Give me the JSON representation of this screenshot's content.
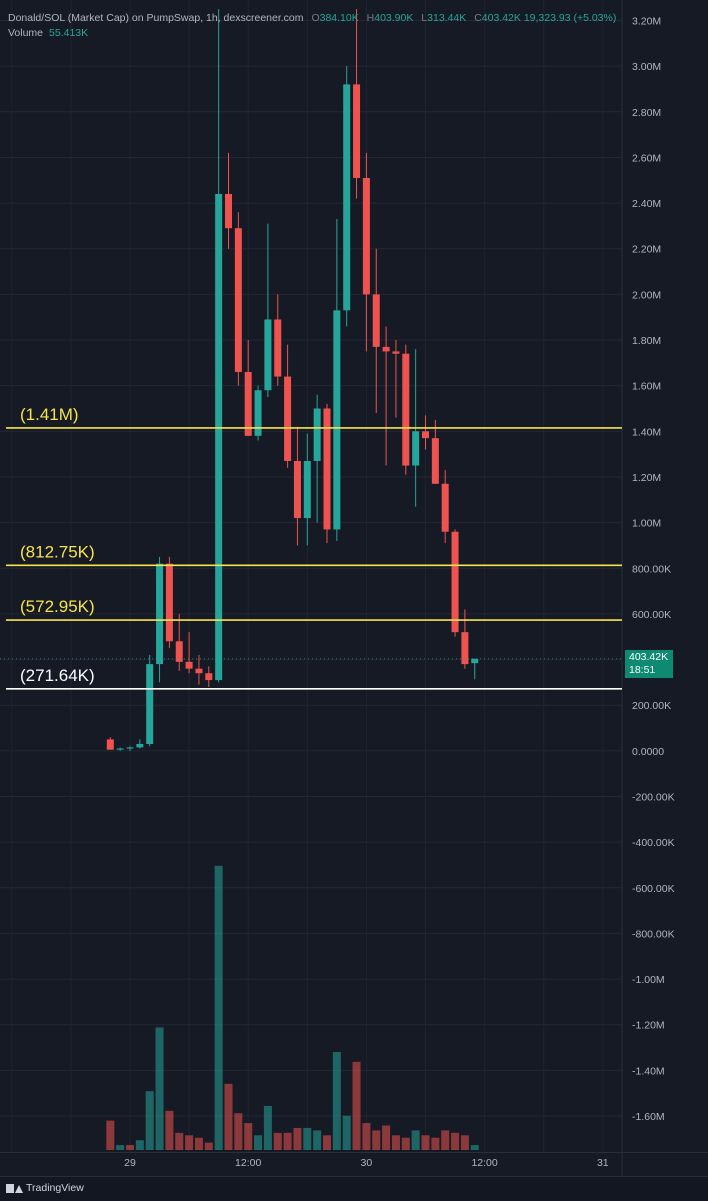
{
  "legend": {
    "symbol": "Donald/SOL (Market Cap) on PumpSwap, 1h, dexscreener.com",
    "o_label": "O",
    "o_value": "384.10K",
    "h_label": "H",
    "h_value": "403.90K",
    "l_label": "L",
    "l_value": "313.44K",
    "c_label": "C",
    "c_value": "403.42K",
    "change": "19,323.93 (+5.03%)",
    "volume_label": "Volume",
    "volume_value": "55.413K"
  },
  "price_tag": {
    "price": "403.42K",
    "countdown": "18:51"
  },
  "footer": {
    "brand": "TradingView"
  },
  "colors": {
    "up": "#26a69a",
    "down": "#ef5350",
    "level_yellow": "#f7e34b",
    "level_white": "#ffffff",
    "background": "#161a25"
  },
  "chart_data": {
    "type": "candlestick",
    "title": "Donald/SOL (Market Cap) on PumpSwap, 1h, dexscreener.com",
    "interval": "1h",
    "x_ticks": [
      {
        "label": "29",
        "hour": 0
      },
      {
        "label": "12:00",
        "hour": 12
      },
      {
        "label": "30",
        "hour": 24
      },
      {
        "label": "12:00",
        "hour": 36
      },
      {
        "label": "31",
        "hour": 48
      }
    ],
    "y_ticks": [
      "3.20M",
      "3.00M",
      "2.80M",
      "2.60M",
      "2.40M",
      "2.20M",
      "2.00M",
      "1.80M",
      "1.60M",
      "1.40M",
      "1.20M",
      "1.00M",
      "800.00K",
      "600.00K",
      "400.00K",
      "200.00K",
      "0.0000",
      "-200.00K",
      "-400.00K",
      "-600.00K",
      "-800.00K",
      "-1.00M",
      "-1.20M",
      "-1.40M",
      "-1.60M"
    ],
    "y_range": [
      -1750000,
      3250000
    ],
    "candles": [
      {
        "hour": -2,
        "o": 50000,
        "h": 60000,
        "l": 5000,
        "c": 5000
      },
      {
        "hour": -1,
        "o": 5000,
        "h": 15000,
        "l": 0,
        "c": 10000
      },
      {
        "hour": 0,
        "o": 10000,
        "h": 20000,
        "l": 0,
        "c": 15000
      },
      {
        "hour": 1,
        "o": 15000,
        "h": 50000,
        "l": 10000,
        "c": 30000
      },
      {
        "hour": 2,
        "o": 30000,
        "h": 420000,
        "l": 20000,
        "c": 380000
      },
      {
        "hour": 3,
        "o": 380000,
        "h": 850000,
        "l": 300000,
        "c": 820000
      },
      {
        "hour": 4,
        "o": 820000,
        "h": 850000,
        "l": 450000,
        "c": 480000
      },
      {
        "hour": 5,
        "o": 480000,
        "h": 600000,
        "l": 350000,
        "c": 390000
      },
      {
        "hour": 6,
        "o": 390000,
        "h": 520000,
        "l": 340000,
        "c": 360000
      },
      {
        "hour": 7,
        "o": 360000,
        "h": 420000,
        "l": 290000,
        "c": 340000
      },
      {
        "hour": 8,
        "o": 340000,
        "h": 370000,
        "l": 280000,
        "c": 310000
      },
      {
        "hour": 9,
        "o": 310000,
        "h": 3250000,
        "l": 300000,
        "c": 2440000
      },
      {
        "hour": 10,
        "o": 2440000,
        "h": 2620000,
        "l": 2200000,
        "c": 2290000
      },
      {
        "hour": 11,
        "o": 2290000,
        "h": 2360000,
        "l": 1600000,
        "c": 1660000
      },
      {
        "hour": 12,
        "o": 1660000,
        "h": 1800000,
        "l": 1380000,
        "c": 1380000
      },
      {
        "hour": 13,
        "o": 1380000,
        "h": 1600000,
        "l": 1360000,
        "c": 1580000
      },
      {
        "hour": 14,
        "o": 1580000,
        "h": 2310000,
        "l": 1550000,
        "c": 1890000
      },
      {
        "hour": 15,
        "o": 1890000,
        "h": 2000000,
        "l": 1600000,
        "c": 1640000
      },
      {
        "hour": 16,
        "o": 1640000,
        "h": 1780000,
        "l": 1240000,
        "c": 1270000
      },
      {
        "hour": 17,
        "o": 1270000,
        "h": 1420000,
        "l": 900000,
        "c": 1020000
      },
      {
        "hour": 18,
        "o": 1020000,
        "h": 1390000,
        "l": 900000,
        "c": 1270000
      },
      {
        "hour": 19,
        "o": 1270000,
        "h": 1560000,
        "l": 1000000,
        "c": 1500000
      },
      {
        "hour": 20,
        "o": 1500000,
        "h": 1520000,
        "l": 910000,
        "c": 970000
      },
      {
        "hour": 21,
        "o": 970000,
        "h": 2330000,
        "l": 920000,
        "c": 1930000
      },
      {
        "hour": 22,
        "o": 1930000,
        "h": 3000000,
        "l": 1860000,
        "c": 2920000
      },
      {
        "hour": 23,
        "o": 2920000,
        "h": 3250000,
        "l": 2420000,
        "c": 2510000
      },
      {
        "hour": 24,
        "o": 2510000,
        "h": 2620000,
        "l": 1750000,
        "c": 2000000
      },
      {
        "hour": 25,
        "o": 2000000,
        "h": 2200000,
        "l": 1480000,
        "c": 1770000
      },
      {
        "hour": 26,
        "o": 1770000,
        "h": 1860000,
        "l": 1250000,
        "c": 1750000
      },
      {
        "hour": 27,
        "o": 1750000,
        "h": 1800000,
        "l": 1460000,
        "c": 1740000
      },
      {
        "hour": 28,
        "o": 1740000,
        "h": 1780000,
        "l": 1210000,
        "c": 1250000
      },
      {
        "hour": 29,
        "o": 1250000,
        "h": 1760000,
        "l": 1070000,
        "c": 1400000
      },
      {
        "hour": 30,
        "o": 1400000,
        "h": 1470000,
        "l": 1320000,
        "c": 1370000
      },
      {
        "hour": 31,
        "o": 1370000,
        "h": 1450000,
        "l": 1170000,
        "c": 1170000
      },
      {
        "hour": 32,
        "o": 1170000,
        "h": 1230000,
        "l": 910000,
        "c": 960000
      },
      {
        "hour": 33,
        "o": 960000,
        "h": 970000,
        "l": 500000,
        "c": 520000
      },
      {
        "hour": 34,
        "o": 520000,
        "h": 620000,
        "l": 360000,
        "c": 380000
      },
      {
        "hour": 35,
        "o": 384100,
        "h": 403900,
        "l": 313440,
        "c": 403420
      }
    ],
    "volume": [
      {
        "hour": -2,
        "v": 12,
        "dir": "down"
      },
      {
        "hour": -1,
        "v": 2,
        "dir": "up"
      },
      {
        "hour": 0,
        "v": 2,
        "dir": "down"
      },
      {
        "hour": 1,
        "v": 4,
        "dir": "up"
      },
      {
        "hour": 2,
        "v": 24,
        "dir": "up"
      },
      {
        "hour": 3,
        "v": 50,
        "dir": "up"
      },
      {
        "hour": 4,
        "v": 16,
        "dir": "down"
      },
      {
        "hour": 5,
        "v": 7,
        "dir": "down"
      },
      {
        "hour": 6,
        "v": 6,
        "dir": "down"
      },
      {
        "hour": 7,
        "v": 5,
        "dir": "down"
      },
      {
        "hour": 8,
        "v": 3,
        "dir": "down"
      },
      {
        "hour": 9,
        "v": 116,
        "dir": "up"
      },
      {
        "hour": 10,
        "v": 27,
        "dir": "down"
      },
      {
        "hour": 11,
        "v": 15,
        "dir": "down"
      },
      {
        "hour": 12,
        "v": 11,
        "dir": "down"
      },
      {
        "hour": 13,
        "v": 6,
        "dir": "up"
      },
      {
        "hour": 14,
        "v": 18,
        "dir": "up"
      },
      {
        "hour": 15,
        "v": 7,
        "dir": "down"
      },
      {
        "hour": 16,
        "v": 7,
        "dir": "down"
      },
      {
        "hour": 17,
        "v": 9,
        "dir": "down"
      },
      {
        "hour": 18,
        "v": 9,
        "dir": "up"
      },
      {
        "hour": 19,
        "v": 8,
        "dir": "up"
      },
      {
        "hour": 20,
        "v": 6,
        "dir": "down"
      },
      {
        "hour": 21,
        "v": 40,
        "dir": "up"
      },
      {
        "hour": 22,
        "v": 14,
        "dir": "up"
      },
      {
        "hour": 23,
        "v": 36,
        "dir": "down"
      },
      {
        "hour": 24,
        "v": 11,
        "dir": "down"
      },
      {
        "hour": 25,
        "v": 8,
        "dir": "down"
      },
      {
        "hour": 26,
        "v": 10,
        "dir": "down"
      },
      {
        "hour": 27,
        "v": 6,
        "dir": "down"
      },
      {
        "hour": 28,
        "v": 5,
        "dir": "down"
      },
      {
        "hour": 29,
        "v": 8,
        "dir": "up"
      },
      {
        "hour": 30,
        "v": 6,
        "dir": "down"
      },
      {
        "hour": 31,
        "v": 5,
        "dir": "down"
      },
      {
        "hour": 32,
        "v": 8,
        "dir": "down"
      },
      {
        "hour": 33,
        "v": 7,
        "dir": "down"
      },
      {
        "hour": 34,
        "v": 6,
        "dir": "down"
      },
      {
        "hour": 35,
        "v": 2,
        "dir": "up"
      }
    ],
    "levels": [
      {
        "label": "(1.41M)",
        "value": 1415000,
        "color": "#f7e34b"
      },
      {
        "label": "(812.75K)",
        "value": 812750,
        "color": "#f7e34b"
      },
      {
        "label": "(572.95K)",
        "value": 572950,
        "color": "#f7e34b"
      },
      {
        "label": "(271.64K)",
        "value": 271640,
        "color": "#ffffff"
      }
    ],
    "current_price": 403420,
    "grid": true
  }
}
